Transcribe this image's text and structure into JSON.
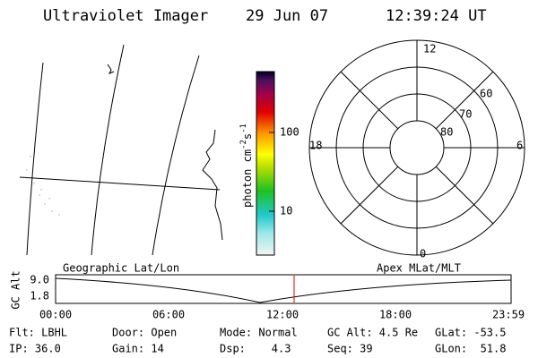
{
  "header": {
    "title": "Ultraviolet Imager",
    "date": "29 Jun 07",
    "time": "12:39:24 UT"
  },
  "colorbar": {
    "label": {
      "text": "photon cm",
      "exp1": "-2",
      "unit": "s",
      "exp2": "-1"
    },
    "ticks": [
      "100",
      "10"
    ]
  },
  "polar": {
    "hours": {
      "top": "12",
      "left": "18",
      "right": "6",
      "bottom": "0"
    },
    "latitudes": [
      "60",
      "70",
      "80"
    ]
  },
  "altitude_panel": {
    "ylabel": "GC Alt",
    "yticks": [
      "9.0",
      "1.8"
    ],
    "left_label": "Geographic Lat/Lon",
    "right_label": "Apex MLat/MLT",
    "xticks": [
      "00:00",
      "06:00",
      "12:00",
      "18:00",
      "23:59"
    ]
  },
  "footer": {
    "rows": [
      [
        "Flt: LBHL",
        "Door: Open",
        "Mode: Normal",
        "GC Alt: 4.5 Re",
        "GLat: -53.5"
      ],
      [
        "IP: 36.0",
        "Gain: 14",
        "Dsp:    4.3",
        "Seq: 39",
        "GLon:  51.8"
      ]
    ]
  }
}
